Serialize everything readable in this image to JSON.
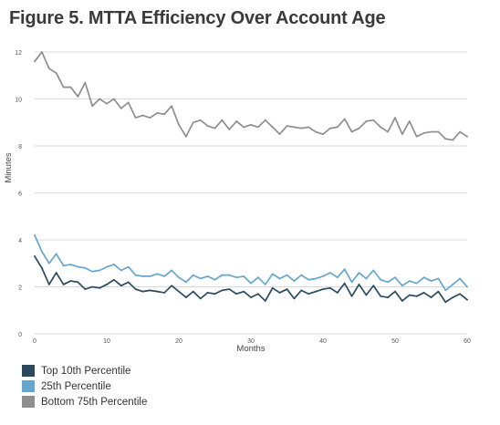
{
  "chart_data": {
    "type": "line",
    "title": "Figure 5. MTTA Efficiency Over Account Age",
    "xlabel": "Months",
    "ylabel": "Minutes",
    "xlim": [
      0,
      60
    ],
    "ylim": [
      0,
      12
    ],
    "x_ticks": [
      "0",
      "10",
      "20",
      "30",
      "40",
      "50",
      "60"
    ],
    "y_ticks": [
      "0",
      "2",
      "4",
      "6",
      "8",
      "10",
      "12"
    ],
    "grid": true,
    "legend_position": "bottom-left",
    "x": [
      0,
      1,
      2,
      3,
      4,
      5,
      6,
      7,
      8,
      9,
      10,
      11,
      12,
      13,
      14,
      15,
      16,
      17,
      18,
      19,
      20,
      21,
      22,
      23,
      24,
      25,
      26,
      27,
      28,
      29,
      30,
      31,
      32,
      33,
      34,
      35,
      36,
      37,
      38,
      39,
      40,
      41,
      42,
      43,
      44,
      45,
      46,
      47,
      48,
      49,
      50,
      51,
      52,
      53,
      54,
      55,
      56,
      57,
      58,
      59,
      60
    ],
    "series": [
      {
        "name": "Top 10th Percentile",
        "color": "#2b4a5e",
        "values": [
          3.3,
          2.8,
          2.1,
          2.6,
          2.1,
          2.25,
          2.2,
          1.9,
          2.0,
          1.95,
          2.1,
          2.3,
          2.05,
          2.2,
          1.9,
          1.8,
          1.85,
          1.8,
          1.75,
          2.05,
          1.8,
          1.55,
          1.8,
          1.5,
          1.75,
          1.7,
          1.85,
          1.9,
          1.7,
          1.8,
          1.55,
          1.7,
          1.4,
          1.95,
          1.75,
          1.9,
          1.5,
          1.85,
          1.7,
          1.8,
          1.9,
          1.95,
          1.75,
          2.15,
          1.6,
          2.1,
          1.65,
          2.05,
          1.6,
          1.55,
          1.8,
          1.4,
          1.65,
          1.6,
          1.75,
          1.55,
          1.8,
          1.35,
          1.55,
          1.7,
          1.45
        ]
      },
      {
        "name": "25th Percentile",
        "color": "#67a6cc",
        "values": [
          4.2,
          3.5,
          3.0,
          3.4,
          2.9,
          2.95,
          2.85,
          2.8,
          2.65,
          2.7,
          2.85,
          2.95,
          2.7,
          2.85,
          2.5,
          2.45,
          2.45,
          2.55,
          2.45,
          2.7,
          2.4,
          2.2,
          2.5,
          2.35,
          2.45,
          2.3,
          2.5,
          2.5,
          2.4,
          2.45,
          2.15,
          2.4,
          2.1,
          2.55,
          2.35,
          2.5,
          2.25,
          2.5,
          2.3,
          2.35,
          2.45,
          2.6,
          2.4,
          2.75,
          2.2,
          2.6,
          2.35,
          2.7,
          2.3,
          2.2,
          2.4,
          2.05,
          2.25,
          2.15,
          2.4,
          2.25,
          2.35,
          1.85,
          2.1,
          2.35,
          2.0
        ]
      },
      {
        "name": "Bottom 75th Percentile",
        "color": "#8e8e8e",
        "values": [
          11.6,
          12.0,
          11.3,
          11.1,
          10.5,
          10.5,
          10.1,
          10.7,
          9.7,
          10.0,
          9.8,
          10.0,
          9.6,
          9.85,
          9.2,
          9.3,
          9.2,
          9.4,
          9.35,
          9.7,
          8.9,
          8.4,
          9.0,
          9.1,
          8.85,
          8.75,
          9.1,
          8.7,
          9.05,
          8.8,
          8.9,
          8.8,
          9.1,
          8.8,
          8.5,
          8.85,
          8.8,
          8.75,
          8.8,
          8.6,
          8.5,
          8.75,
          8.8,
          9.15,
          8.6,
          8.75,
          9.05,
          9.1,
          8.8,
          8.6,
          9.2,
          8.5,
          9.05,
          8.4,
          8.55,
          8.6,
          8.6,
          8.3,
          8.25,
          8.6,
          8.4
        ]
      }
    ]
  }
}
